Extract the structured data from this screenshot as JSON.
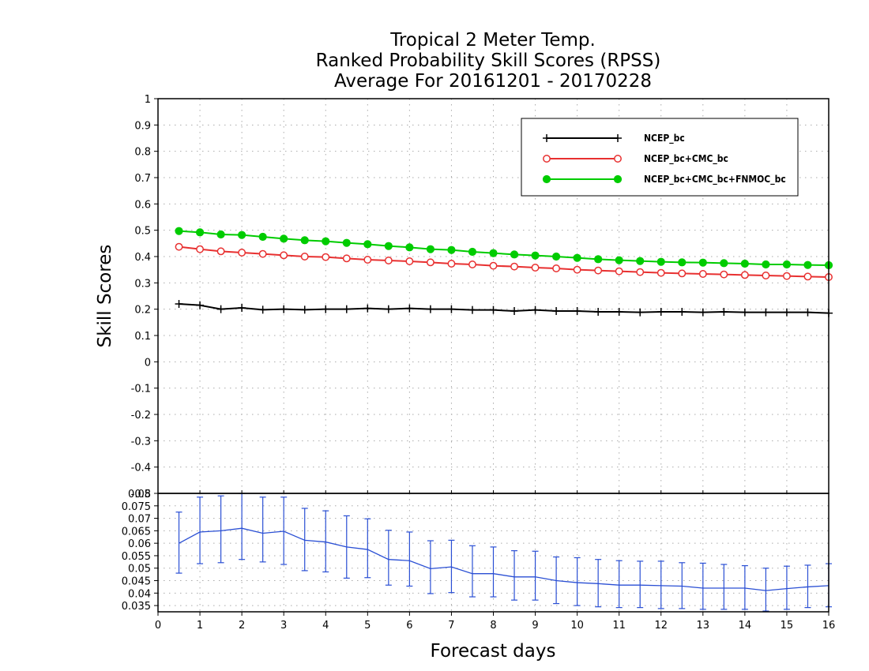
{
  "title_lines": [
    "Tropical 2 Meter Temp.",
    "Ranked Probability Skill Scores (RPSS)",
    "Average For 20161201 - 20170228"
  ],
  "ylabel": "Skill Scores",
  "xlabel": "Forecast days",
  "colors": {
    "ncep": "#000000",
    "ncep_cmc": "#e83030",
    "ncep_cmc_fnmoc": "#00cc00",
    "spread": "#2a4fd4",
    "grid": "#aaaaaa"
  },
  "chart_data": [
    {
      "type": "line",
      "panel": "top",
      "ylim": [
        -0.5,
        1
      ],
      "yticks": [
        "1",
        "0.9",
        "0.8",
        "0.7",
        "0.6",
        "0.5",
        "0.4",
        "0.3",
        "0.2",
        "0.1",
        "0",
        "-0.1",
        "-0.2",
        "-0.3",
        "-0.4",
        "-0.5"
      ],
      "ytick_values": [
        1,
        0.9,
        0.8,
        0.7,
        0.6,
        0.5,
        0.4,
        0.3,
        0.2,
        0.1,
        0,
        -0.1,
        -0.2,
        -0.3,
        -0.4,
        -0.5
      ],
      "xlim": [
        0,
        16
      ],
      "grid": true,
      "legend": "top-right",
      "x": [
        0.5,
        1,
        1.5,
        2,
        2.5,
        3,
        3.5,
        4,
        4.5,
        5,
        5.5,
        6,
        6.5,
        7,
        7.5,
        8,
        8.5,
        9,
        9.5,
        10,
        10.5,
        11,
        11.5,
        12,
        12.5,
        13,
        13.5,
        14,
        14.5,
        15,
        15.5,
        16
      ],
      "series": [
        {
          "name": "NCEP_bc",
          "marker": "plus",
          "values": [
            0.22,
            0.215,
            0.2,
            0.205,
            0.198,
            0.2,
            0.198,
            0.2,
            0.2,
            0.203,
            0.2,
            0.203,
            0.2,
            0.2,
            0.197,
            0.197,
            0.193,
            0.197,
            0.193,
            0.193,
            0.19,
            0.19,
            0.188,
            0.19,
            0.19,
            0.188,
            0.19,
            0.188,
            0.188,
            0.188,
            0.188,
            0.185
          ]
        },
        {
          "name": "NCEP_bc+CMC_bc",
          "marker": "open-circle",
          "values": [
            0.437,
            0.428,
            0.42,
            0.415,
            0.41,
            0.405,
            0.4,
            0.398,
            0.393,
            0.388,
            0.385,
            0.382,
            0.378,
            0.373,
            0.37,
            0.365,
            0.362,
            0.358,
            0.355,
            0.35,
            0.347,
            0.344,
            0.341,
            0.338,
            0.336,
            0.334,
            0.332,
            0.33,
            0.328,
            0.326,
            0.324,
            0.322
          ]
        },
        {
          "name": "NCEP_bc+CMC_bc+FNMOC_bc",
          "marker": "filled-circle",
          "values": [
            0.497,
            0.492,
            0.484,
            0.482,
            0.475,
            0.468,
            0.462,
            0.458,
            0.452,
            0.447,
            0.44,
            0.435,
            0.428,
            0.425,
            0.418,
            0.413,
            0.408,
            0.404,
            0.4,
            0.395,
            0.39,
            0.386,
            0.383,
            0.38,
            0.378,
            0.377,
            0.375,
            0.373,
            0.37,
            0.37,
            0.368,
            0.367
          ]
        }
      ]
    },
    {
      "type": "line",
      "panel": "bottom",
      "ylim": [
        0.0325,
        0.08
      ],
      "yticks": [
        "0.08",
        "0.075",
        "0.07",
        "0.065",
        "0.06",
        "0.055",
        "0.05",
        "0.045",
        "0.04",
        "0.035"
      ],
      "ytick_values": [
        0.08,
        0.075,
        0.07,
        0.065,
        0.06,
        0.055,
        0.05,
        0.045,
        0.04,
        0.035
      ],
      "xlim": [
        0,
        16
      ],
      "xticks": [
        "0",
        "1",
        "2",
        "3",
        "4",
        "5",
        "6",
        "7",
        "8",
        "9",
        "10",
        "11",
        "12",
        "13",
        "14",
        "15",
        "16"
      ],
      "xtick_values": [
        0,
        1,
        2,
        3,
        4,
        5,
        6,
        7,
        8,
        9,
        10,
        11,
        12,
        13,
        14,
        15,
        16
      ],
      "grid": true,
      "x": [
        0.5,
        1,
        1.5,
        2,
        2.5,
        3,
        3.5,
        4,
        4.5,
        5,
        5.5,
        6,
        6.5,
        7,
        7.5,
        8,
        8.5,
        9,
        9.5,
        10,
        10.5,
        11,
        11.5,
        12,
        12.5,
        13,
        13.5,
        14,
        14.5,
        15,
        15.5,
        16
      ],
      "values": [
        0.06,
        0.0645,
        0.065,
        0.066,
        0.064,
        0.0648,
        0.0612,
        0.0605,
        0.0585,
        0.0575,
        0.0535,
        0.053,
        0.0498,
        0.0505,
        0.0478,
        0.0478,
        0.0465,
        0.0465,
        0.045,
        0.0442,
        0.0438,
        0.0432,
        0.0432,
        0.043,
        0.0428,
        0.042,
        0.042,
        0.042,
        0.041,
        0.0418,
        0.0425,
        0.043
      ],
      "upper": [
        0.0725,
        0.0785,
        0.079,
        0.08,
        0.0785,
        0.0785,
        0.074,
        0.073,
        0.071,
        0.0698,
        0.0652,
        0.0645,
        0.061,
        0.0612,
        0.059,
        0.0585,
        0.057,
        0.0568,
        0.0545,
        0.0542,
        0.0535,
        0.053,
        0.0528,
        0.0528,
        0.0522,
        0.052,
        0.0515,
        0.051,
        0.05,
        0.0508,
        0.0512,
        0.0518
      ],
      "lower": [
        0.048,
        0.0518,
        0.0522,
        0.0535,
        0.0525,
        0.0515,
        0.049,
        0.0485,
        0.046,
        0.0462,
        0.0432,
        0.0428,
        0.0398,
        0.0402,
        0.0385,
        0.0385,
        0.0372,
        0.0372,
        0.0358,
        0.035,
        0.0345,
        0.0342,
        0.0342,
        0.0338,
        0.0338,
        0.0335,
        0.0335,
        0.0335,
        0.0328,
        0.0335,
        0.0342,
        0.0345
      ]
    }
  ]
}
